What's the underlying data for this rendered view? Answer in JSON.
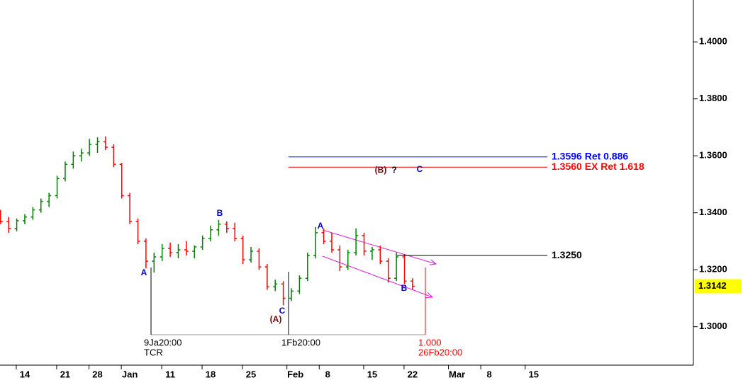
{
  "chart_data": {
    "type": "ohlc",
    "up_color": "#008000",
    "down_color": "#ff0000",
    "xlim": [
      -3.07,
      82.5
    ],
    "ylim": [
      1.287,
      1.4147
    ],
    "xticks": [
      {
        "value": 0,
        "label": "14"
      },
      {
        "value": 5,
        "label": "21"
      },
      {
        "value": 9,
        "label": "28"
      },
      {
        "value": 13,
        "label": "Jan"
      },
      {
        "value": 18,
        "label": "11"
      },
      {
        "value": 23,
        "label": "18"
      },
      {
        "value": 28,
        "label": "25"
      },
      {
        "value": 33.5,
        "label": "Feb"
      },
      {
        "value": 37.5,
        "label": "8"
      },
      {
        "value": 43,
        "label": "15"
      },
      {
        "value": 48,
        "label": "22"
      },
      {
        "value": 53.5,
        "label": "Mar"
      },
      {
        "value": 57.5,
        "label": "8"
      },
      {
        "value": 63,
        "label": "15"
      }
    ],
    "yticks": [
      {
        "value": 1.3,
        "label": "1.3000"
      },
      {
        "value": 1.32,
        "label": "1.3200"
      },
      {
        "value": 1.34,
        "label": "1.3400"
      },
      {
        "value": 1.36,
        "label": "1.3600"
      },
      {
        "value": 1.38,
        "label": "1.3800"
      },
      {
        "value": 1.4,
        "label": "1.4000"
      }
    ],
    "x": [
      -3,
      -2,
      -1,
      0,
      1,
      2,
      3,
      4,
      5,
      6,
      7,
      8,
      9,
      10,
      11,
      12,
      13,
      14,
      15,
      16,
      17,
      18,
      19,
      20,
      21,
      22,
      23,
      24,
      25,
      26,
      27,
      28,
      29,
      30,
      31,
      32,
      33,
      34,
      35,
      36,
      37,
      38,
      39,
      40,
      41,
      42,
      43,
      44,
      45,
      46,
      47,
      48
    ],
    "open": [
      1.3395,
      1.337,
      1.3345,
      1.3372,
      1.3385,
      1.341,
      1.344,
      1.346,
      1.352,
      1.357,
      1.36,
      1.361,
      1.364,
      1.365,
      1.363,
      1.357,
      1.346,
      1.337,
      1.33,
      1.323,
      1.3245,
      1.3275,
      1.326,
      1.327,
      1.3265,
      1.328,
      1.331,
      1.334,
      1.336,
      1.3345,
      1.331,
      1.3235,
      1.3265,
      1.321,
      1.314,
      1.315,
      1.31,
      1.3125,
      1.317,
      1.325,
      1.333,
      1.33,
      1.327,
      1.321,
      1.326,
      1.332,
      1.3265,
      1.327,
      1.323,
      1.317,
      1.3245,
      1.316
    ],
    "high": [
      1.341,
      1.3385,
      1.338,
      1.3395,
      1.342,
      1.345,
      1.347,
      1.353,
      1.358,
      1.3615,
      1.3625,
      1.366,
      1.3665,
      1.3668,
      1.364,
      1.3575,
      1.347,
      1.338,
      1.331,
      1.326,
      1.329,
      1.3295,
      1.329,
      1.33,
      1.3285,
      1.332,
      1.3355,
      1.3375,
      1.337,
      1.3365,
      1.332,
      1.328,
      1.3275,
      1.322,
      1.3165,
      1.316,
      1.3135,
      1.318,
      1.326,
      1.335,
      1.3345,
      1.333,
      1.3285,
      1.327,
      1.3345,
      1.333,
      1.328,
      1.3285,
      1.324,
      1.326,
      1.3255,
      1.317
    ],
    "low": [
      1.336,
      1.333,
      1.3335,
      1.336,
      1.3375,
      1.34,
      1.342,
      1.345,
      1.351,
      1.3555,
      1.358,
      1.36,
      1.361,
      1.362,
      1.356,
      1.345,
      1.336,
      1.329,
      1.3205,
      1.319,
      1.323,
      1.3245,
      1.324,
      1.325,
      1.324,
      1.327,
      1.33,
      1.332,
      1.333,
      1.33,
      1.322,
      1.3225,
      1.32,
      1.313,
      1.3125,
      1.3075,
      1.309,
      1.3115,
      1.316,
      1.324,
      1.329,
      1.326,
      1.3195,
      1.32,
      1.325,
      1.325,
      1.3235,
      1.322,
      1.3155,
      1.316,
      1.315,
      1.313
    ],
    "close": [
      1.337,
      1.3345,
      1.3372,
      1.3385,
      1.341,
      1.344,
      1.346,
      1.352,
      1.357,
      1.36,
      1.361,
      1.364,
      1.365,
      1.363,
      1.357,
      1.346,
      1.337,
      1.33,
      1.323,
      1.3245,
      1.3275,
      1.326,
      1.327,
      1.3265,
      1.328,
      1.331,
      1.334,
      1.336,
      1.3345,
      1.331,
      1.3235,
      1.3265,
      1.321,
      1.314,
      1.315,
      1.31,
      1.3125,
      1.317,
      1.325,
      1.333,
      1.33,
      1.327,
      1.321,
      1.326,
      1.332,
      1.3265,
      1.327,
      1.323,
      1.317,
      1.3245,
      1.316,
      1.3142
    ],
    "levels": [
      {
        "value": 1.3596,
        "label": "1.3596 Ret 0.886",
        "color": "#0000ff"
      },
      {
        "value": 1.356,
        "label": "1.3560 EX Ret 1.618",
        "color": "#ff0000"
      },
      {
        "value": 1.325,
        "label": "1.3250",
        "color": "#000000"
      }
    ],
    "last_price": 1.3142,
    "wave_labels": [
      {
        "text": "A",
        "color": "#0000cc"
      },
      {
        "text": "B",
        "color": "#0000cc"
      },
      {
        "text": "C",
        "color": "#0000cc"
      },
      {
        "text": "(A)",
        "color": "#7a0000"
      },
      {
        "text": "A",
        "color": "#0000cc"
      },
      {
        "text": "B",
        "color": "#0000cc"
      },
      {
        "text": "(B)",
        "color": "#7a0000"
      },
      {
        "text": "?",
        "color": "#000000"
      },
      {
        "text": "C",
        "color": "#0000cc"
      }
    ],
    "markers": [
      {
        "lines": [
          "9Ja20:00",
          "TCR"
        ],
        "color": "#000000"
      },
      {
        "lines": [
          "1Fb20:00"
        ],
        "color": "#000000"
      },
      {
        "lines": [
          "1.000",
          "26Fb20:00"
        ],
        "color": "#ff0000"
      }
    ]
  }
}
